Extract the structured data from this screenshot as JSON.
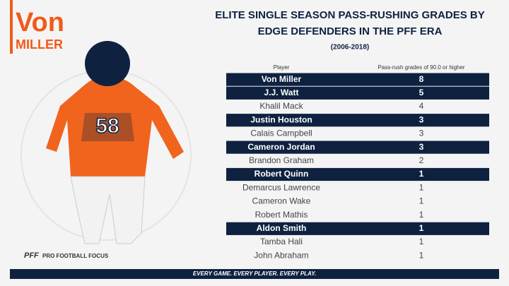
{
  "header": {
    "first_name": "Von",
    "last_name": "MILLER",
    "title_line1": "ELITE SINGLE SEASON PASS-RUSHING GRADES BY",
    "title_line2": "EDGE DEFENDERS IN THE PFF ERA",
    "subtitle": "(2006-2018)",
    "jersey_number": "58"
  },
  "table": {
    "columns": [
      "Player",
      "Pass-rush grades of 90.0 or higher"
    ],
    "rows": [
      {
        "player": "Von Miller",
        "grades": 8,
        "highlight": true
      },
      {
        "player": "J.J. Watt",
        "grades": 5,
        "highlight": true
      },
      {
        "player": "Khalil Mack",
        "grades": 4,
        "highlight": false
      },
      {
        "player": "Justin Houston",
        "grades": 3,
        "highlight": true
      },
      {
        "player": "Calais Campbell",
        "grades": 3,
        "highlight": false
      },
      {
        "player": "Cameron Jordan",
        "grades": 3,
        "highlight": true
      },
      {
        "player": "Brandon Graham",
        "grades": 2,
        "highlight": false
      },
      {
        "player": "Robert Quinn",
        "grades": 1,
        "highlight": true
      },
      {
        "player": "Demarcus Lawrence",
        "grades": 1,
        "highlight": false
      },
      {
        "player": "Cameron Wake",
        "grades": 1,
        "highlight": false
      },
      {
        "player": "Robert Mathis",
        "grades": 1,
        "highlight": false
      },
      {
        "player": "Aldon Smith",
        "grades": 1,
        "highlight": true
      },
      {
        "player": "Tamba Hali",
        "grades": 1,
        "highlight": false
      },
      {
        "player": "John Abraham",
        "grades": 1,
        "highlight": false
      }
    ]
  },
  "footer": {
    "tagline": "EVERY GAME. EVERY PLAYER. EVERY PLAY.",
    "logo_text": "PRO FOOTBALL FOCUS",
    "logo_mark": "PFF"
  }
}
